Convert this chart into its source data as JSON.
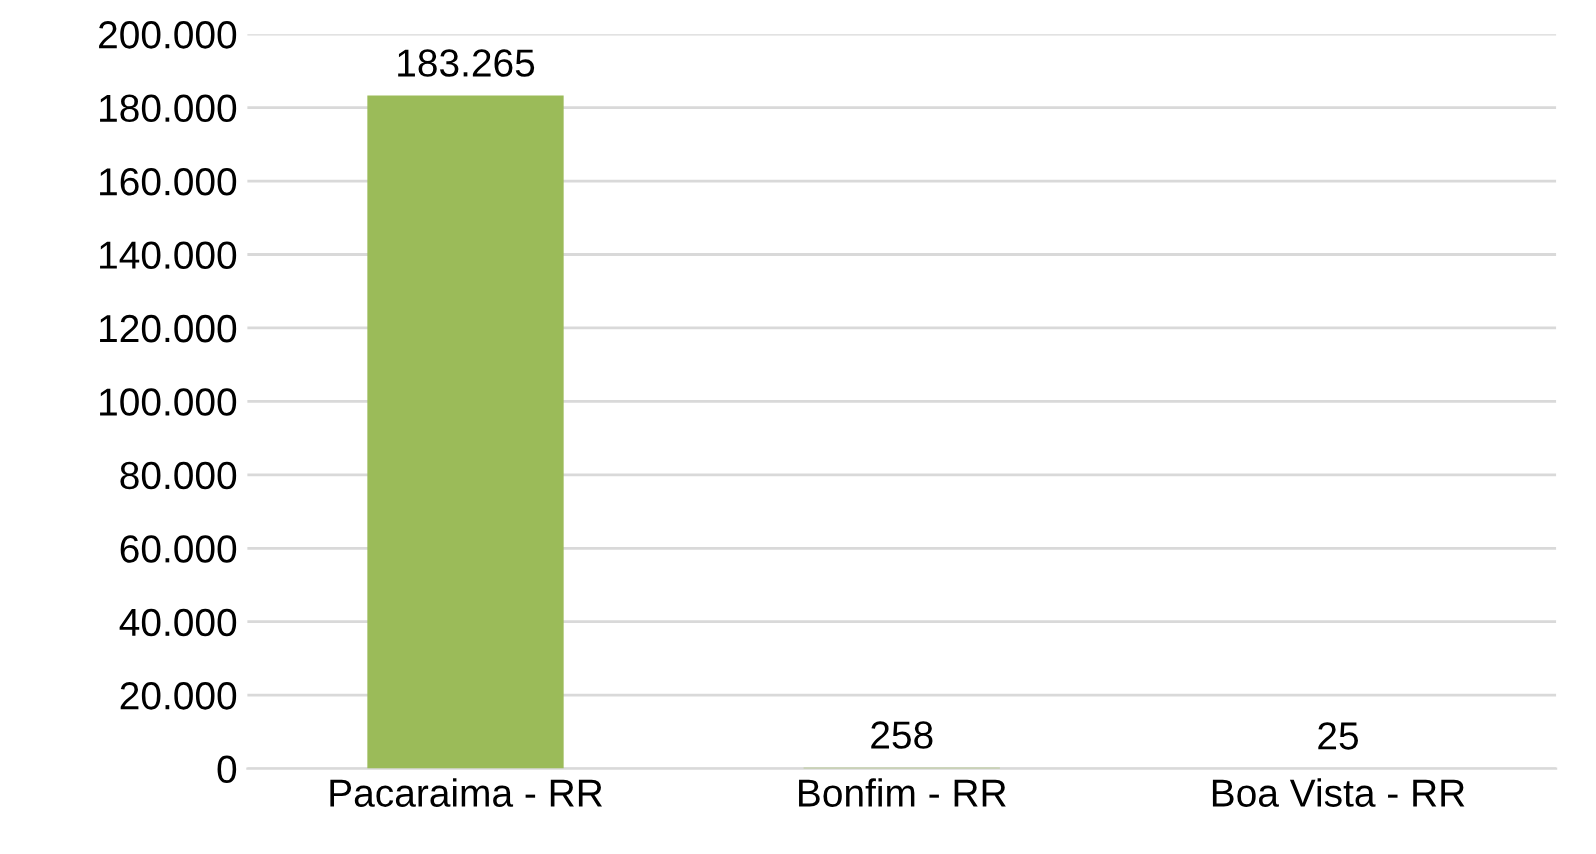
{
  "chart_data": {
    "type": "bar",
    "categories": [
      "Pacaraima - RR",
      "Bonfim - RR",
      "Boa Vista - RR"
    ],
    "values": [
      183265,
      258,
      25
    ],
    "color": "#9bbb59",
    "value_labels": [
      "183.265",
      "258",
      "25"
    ],
    "ylim": [
      0,
      200000
    ],
    "yticks": [
      {
        "value": 0,
        "label": "0"
      },
      {
        "value": 20000,
        "label": "20.000"
      },
      {
        "value": 40000,
        "label": "40.000"
      },
      {
        "value": 60000,
        "label": "60.000"
      },
      {
        "value": 80000,
        "label": "80.000"
      },
      {
        "value": 100000,
        "label": "100.000"
      },
      {
        "value": 120000,
        "label": "120.000"
      },
      {
        "value": 140000,
        "label": "140.000"
      },
      {
        "value": 160000,
        "label": "160.000"
      },
      {
        "value": 180000,
        "label": "180.000"
      },
      {
        "value": 200000,
        "label": "200.000"
      }
    ],
    "grid": "y",
    "legend": false
  }
}
